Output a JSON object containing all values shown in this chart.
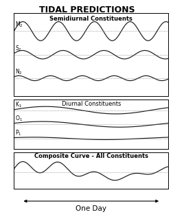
{
  "title": "TIDAL PREDICTIONS",
  "title_fontsize": 9,
  "panel1_label": "Semidiurnal Constituents",
  "panel2_label": "Diurnal Constituents",
  "panel3_label": "Composite Curve - All Constituents",
  "one_day_label": "One Day",
  "M2": {
    "freq": 4.0,
    "amp": 0.85,
    "phase": 0.0
  },
  "S2": {
    "freq": 3.5,
    "amp": 0.38,
    "phase": 0.3
  },
  "N2": {
    "freq": 4.5,
    "amp": 0.22,
    "phase": 0.6
  },
  "K1": {
    "freq": 1.02,
    "amp": 0.55,
    "phase": 0.15
  },
  "O1": {
    "freq": 0.93,
    "amp": 0.42,
    "phase": 0.4
  },
  "P1": {
    "freq": 1.0,
    "amp": 0.18,
    "phase": 0.7
  },
  "line_color": "#1a1a1a",
  "dot_color": "#666666",
  "label_fs": 5.5,
  "sublabel_fs": 6.0,
  "panel_bg": "#f8f8f8"
}
